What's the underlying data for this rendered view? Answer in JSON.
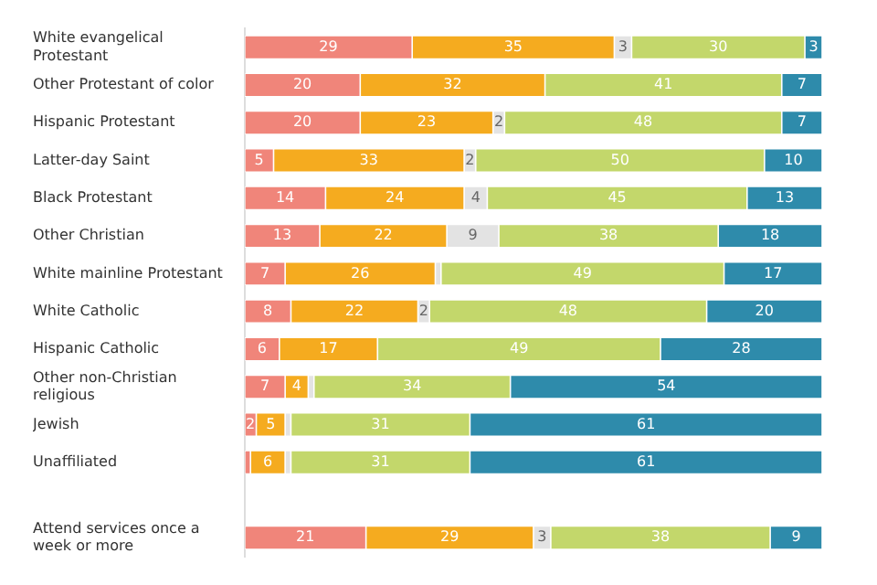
{
  "chart_data": {
    "type": "bar",
    "orientation": "horizontal",
    "stacked": true,
    "categories": [
      "White evangelical Protestant",
      "Other Protestant of color",
      "Hispanic Protestant",
      "Latter-day Saint",
      "Black Protestant",
      "Other Christian",
      "White mainline Protestant",
      "White Catholic",
      "Hispanic Catholic",
      "Other non-Christian religious",
      "Jewish",
      "Unaffiliated",
      null,
      "Attend services once a week or more"
    ],
    "series": [
      {
        "color": "#f0857a",
        "values": [
          29,
          20,
          20,
          5,
          14,
          13,
          7,
          8,
          6,
          7,
          2,
          1,
          null,
          21
        ],
        "value_labels": [
          "29",
          "20",
          "20",
          "5",
          "14",
          "13",
          "7",
          "8",
          "6",
          "7",
          "2",
          null,
          null,
          "21"
        ]
      },
      {
        "color": "#f5ab1f",
        "values": [
          35,
          32,
          23,
          33,
          24,
          22,
          26,
          22,
          17,
          4,
          5,
          6,
          null,
          29
        ],
        "value_labels": [
          "35",
          "32",
          "23",
          "33",
          "24",
          "22",
          "26",
          "22",
          "17",
          "4",
          "5",
          "6",
          null,
          "29"
        ]
      },
      {
        "color": "#e3e3e3",
        "values": [
          3,
          null,
          2,
          2,
          4,
          9,
          1,
          2,
          null,
          1,
          1,
          1,
          null,
          3
        ],
        "value_labels": [
          "3",
          null,
          "2",
          "2",
          "4",
          "9",
          null,
          "2",
          null,
          null,
          null,
          null,
          null,
          "3"
        ]
      },
      {
        "color": "#c3d76b",
        "values": [
          30,
          41,
          48,
          50,
          45,
          38,
          49,
          48,
          49,
          34,
          31,
          31,
          null,
          38
        ],
        "value_labels": [
          "30",
          "41",
          "48",
          "50",
          "45",
          "38",
          "49",
          "48",
          "49",
          "34",
          "31",
          "31",
          null,
          "38"
        ]
      },
      {
        "color": "#2e8bab",
        "values": [
          3,
          7,
          7,
          10,
          13,
          18,
          17,
          20,
          28,
          54,
          61,
          61,
          null,
          9
        ],
        "value_labels": [
          "3",
          "7",
          "7",
          "10",
          "13",
          "18",
          "17",
          "20",
          "28",
          "54",
          "61",
          "61",
          null,
          "9"
        ]
      }
    ],
    "xlim": [
      0,
      100
    ],
    "tick_labels": "y",
    "legend": false
  }
}
